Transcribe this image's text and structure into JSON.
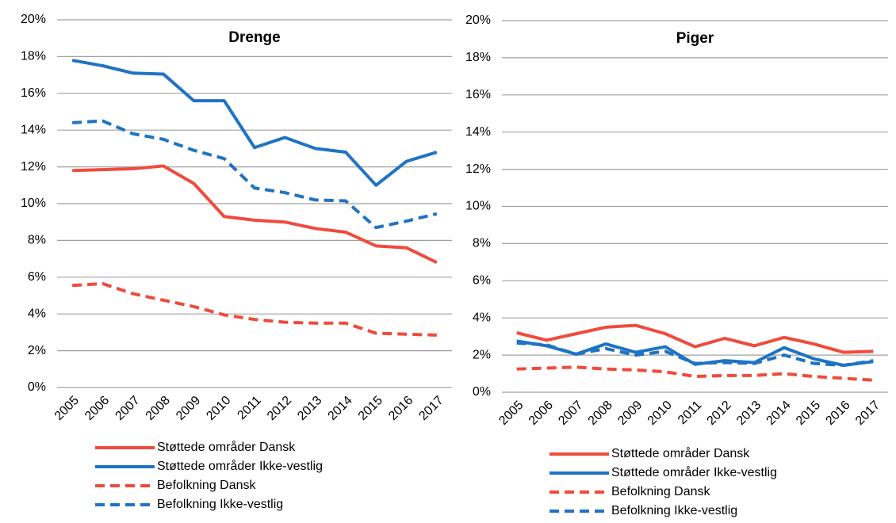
{
  "chart_data": [
    {
      "type": "line",
      "title": "Drenge",
      "categories": [
        "2005",
        "2006",
        "2007",
        "2008",
        "2009",
        "2010",
        "2011",
        "2012",
        "2013",
        "2014",
        "2015",
        "2016",
        "2017"
      ],
      "ylim": [
        0,
        20
      ],
      "yticks": [
        {
          "value": 0,
          "label": "0%"
        },
        {
          "value": 2,
          "label": "2%"
        },
        {
          "value": 4,
          "label": "4%"
        },
        {
          "value": 6,
          "label": "6%"
        },
        {
          "value": 8,
          "label": "8%"
        },
        {
          "value": 10,
          "label": "10%"
        },
        {
          "value": 12,
          "label": "12%"
        },
        {
          "value": 14,
          "label": "14%"
        },
        {
          "value": 16,
          "label": "16%"
        },
        {
          "value": 18,
          "label": "18%"
        },
        {
          "value": 20,
          "label": "20%"
        }
      ],
      "grid": true,
      "series": [
        {
          "name": "Støttede områder Dansk",
          "color": "#ef4b3c",
          "dashed": false,
          "values": [
            11.8,
            11.85,
            11.9,
            12.05,
            11.1,
            9.3,
            9.1,
            9.0,
            8.65,
            8.45,
            7.7,
            7.6,
            6.8
          ]
        },
        {
          "name": "Støttede områder Ikke-vestlig",
          "color": "#1f73c4",
          "dashed": false,
          "values": [
            17.8,
            17.5,
            17.1,
            17.05,
            15.6,
            15.6,
            13.05,
            13.6,
            13.0,
            12.8,
            11.0,
            12.3,
            12.8
          ]
        },
        {
          "name": "Befolkning Dansk",
          "color": "#ef4b3c",
          "dashed": true,
          "values": [
            5.55,
            5.65,
            5.1,
            4.75,
            4.4,
            3.95,
            3.7,
            3.55,
            3.5,
            3.5,
            2.95,
            2.9,
            2.85
          ]
        },
        {
          "name": "Befolkning Ikke-vestlig",
          "color": "#1f73c4",
          "dashed": true,
          "values": [
            14.4,
            14.5,
            13.8,
            13.5,
            12.9,
            12.45,
            10.85,
            10.6,
            10.2,
            10.15,
            8.7,
            9.05,
            9.45
          ]
        }
      ]
    },
    {
      "type": "line",
      "title": "Piger",
      "categories": [
        "2005",
        "2006",
        "2007",
        "2008",
        "2009",
        "2010",
        "2011",
        "2012",
        "2013",
        "2014",
        "2015",
        "2016",
        "2017"
      ],
      "ylim": [
        0,
        20
      ],
      "yticks": [
        {
          "value": 0,
          "label": "0%"
        },
        {
          "value": 2,
          "label": "2%"
        },
        {
          "value": 4,
          "label": "4%"
        },
        {
          "value": 6,
          "label": "6%"
        },
        {
          "value": 8,
          "label": "8%"
        },
        {
          "value": 10,
          "label": "10%"
        },
        {
          "value": 12,
          "label": "12%"
        },
        {
          "value": 14,
          "label": "14%"
        },
        {
          "value": 16,
          "label": "16%"
        },
        {
          "value": 18,
          "label": "18%"
        },
        {
          "value": 20,
          "label": "20%"
        }
      ],
      "grid": true,
      "series": [
        {
          "name": "Støttede områder Dansk",
          "color": "#ef4b3c",
          "dashed": false,
          "values": [
            3.2,
            2.8,
            3.15,
            3.5,
            3.6,
            3.15,
            2.45,
            2.9,
            2.5,
            2.95,
            2.6,
            2.15,
            2.2
          ]
        },
        {
          "name": "Støttede områder Ikke-vestlig",
          "color": "#1f73c4",
          "dashed": false,
          "values": [
            2.75,
            2.5,
            2.05,
            2.6,
            2.15,
            2.45,
            1.5,
            1.7,
            1.6,
            2.4,
            1.8,
            1.45,
            1.65
          ]
        },
        {
          "name": "Befolkning Dansk",
          "color": "#ef4b3c",
          "dashed": true,
          "values": [
            1.25,
            1.3,
            1.35,
            1.25,
            1.2,
            1.1,
            0.85,
            0.9,
            0.9,
            1.0,
            0.85,
            0.75,
            0.65
          ]
        },
        {
          "name": "Befolkning Ikke-vestlig",
          "color": "#1f73c4",
          "dashed": true,
          "values": [
            2.65,
            2.55,
            2.05,
            2.35,
            2.0,
            2.2,
            1.55,
            1.6,
            1.55,
            2.0,
            1.55,
            1.45,
            1.7
          ]
        }
      ]
    }
  ]
}
